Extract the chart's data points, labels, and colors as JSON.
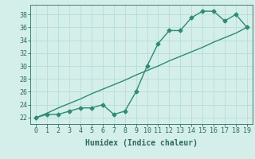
{
  "x": [
    0,
    1,
    2,
    3,
    4,
    5,
    6,
    7,
    8,
    9,
    10,
    11,
    12,
    13,
    14,
    15,
    16,
    17,
    18,
    19
  ],
  "y_curve": [
    22,
    22.5,
    22.5,
    23,
    23.5,
    23.5,
    24,
    22.5,
    23,
    26,
    30,
    33.5,
    35.5,
    35.5,
    37.5,
    38.5,
    38.5,
    37,
    38,
    36
  ],
  "y_linear": [
    22,
    22.7,
    23.5,
    24.2,
    24.9,
    25.7,
    26.4,
    27.1,
    27.8,
    28.6,
    29.3,
    30.0,
    30.8,
    31.5,
    32.2,
    32.9,
    33.7,
    34.4,
    35.1,
    36.0
  ],
  "color": "#2e8b74",
  "bg_color": "#d4eeea",
  "grid_color": "#b8ddd8",
  "xlabel": "Humidex (Indice chaleur)",
  "ylabel_ticks": [
    22,
    24,
    26,
    28,
    30,
    32,
    34,
    36,
    38
  ],
  "xlim": [
    -0.5,
    19.5
  ],
  "ylim": [
    21.0,
    39.5
  ],
  "marker": "D",
  "marker_size": 2.5,
  "linewidth": 1.0,
  "font_color": "#2e6b5e",
  "tick_fontsize": 6,
  "xlabel_fontsize": 7
}
